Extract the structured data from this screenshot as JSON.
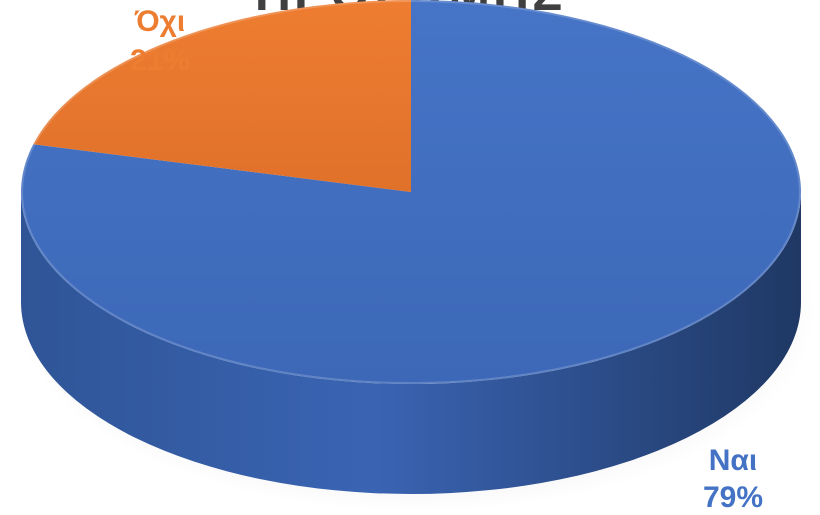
{
  "chart_data": {
    "type": "pie",
    "title": "ΠΡΟΣΩΜΗΣ",
    "slices": [
      {
        "label": "Ναι",
        "value": 79,
        "display": "79%",
        "color": "#4472C4"
      },
      {
        "label": "Όχι",
        "value": 21,
        "display": "21%",
        "color": "#ED7D31"
      }
    ],
    "legend": "none",
    "style": "3d"
  }
}
